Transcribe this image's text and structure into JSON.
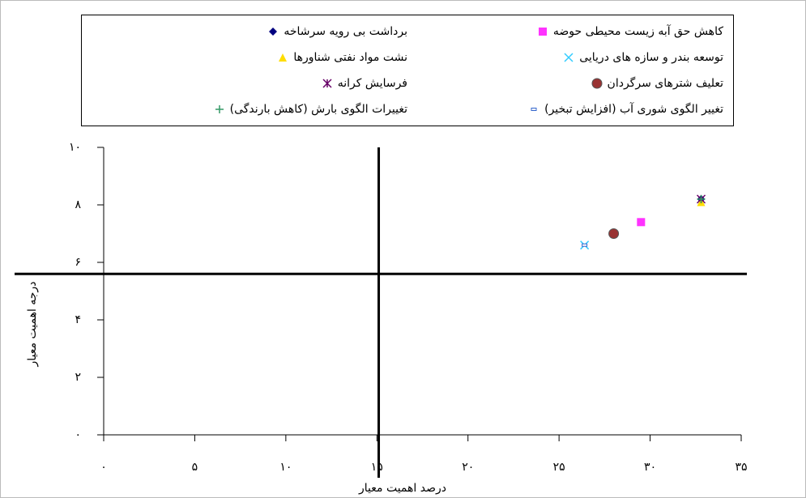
{
  "chart_data": {
    "type": "scatter",
    "xlabel": "درصد اهمیت معیار",
    "ylabel": "درجه اهمیت معیار",
    "xlim": [
      0,
      35
    ],
    "ylim": [
      0,
      10
    ],
    "xticks": [
      {
        "value": 0,
        "label": "۰"
      },
      {
        "value": 5,
        "label": "۵"
      },
      {
        "value": 10,
        "label": "۱۰"
      },
      {
        "value": 15,
        "label": "۱۵"
      },
      {
        "value": 20,
        "label": "۲۰"
      },
      {
        "value": 25,
        "label": "۲۵"
      },
      {
        "value": 30,
        "label": "۳۰"
      },
      {
        "value": 35,
        "label": "۳۵"
      }
    ],
    "yticks": [
      {
        "value": 0,
        "label": "۰"
      },
      {
        "value": 2,
        "label": "۲"
      },
      {
        "value": 4,
        "label": "۴"
      },
      {
        "value": 6,
        "label": "۶"
      },
      {
        "value": 8,
        "label": "۸"
      },
      {
        "value": 10,
        "label": "۱۰"
      }
    ],
    "reference_x": 15.1,
    "reference_y": 5.6,
    "series": [
      {
        "name": "کاهش حق آبه زیست محیطی حوضه",
        "color": "#ff33ff",
        "marker": "square",
        "x": [
          29.5
        ],
        "values": [
          7.4
        ]
      },
      {
        "name": "برداشت بی رویه سرشاخه",
        "color": "#000080",
        "marker": "diamond",
        "x": [
          32.8
        ],
        "values": [
          8.2
        ]
      },
      {
        "name": "توسعه  بندر و سازه های دریایی",
        "color": "#33ccff",
        "marker": "cross",
        "x": [
          26.4
        ],
        "values": [
          6.6
        ]
      },
      {
        "name": "نشت مواد نفتی شناورها",
        "color": "#ffdd00",
        "marker": "triangle",
        "x": [
          32.8
        ],
        "values": [
          8.1
        ]
      },
      {
        "name": "تعلیف شترهای سرگردان",
        "color": "#993333",
        "marker": "circle",
        "x": [
          28.0
        ],
        "values": [
          7.0
        ]
      },
      {
        "name": "فرسایش کرانه",
        "color": "#660066",
        "marker": "star",
        "x": [
          32.8
        ],
        "values": [
          8.2
        ]
      },
      {
        "name": "تغییر الگوی شوری آب (افزایش تبخیر)",
        "color": "#3366cc",
        "marker": "dash",
        "x": [
          26.4
        ],
        "values": [
          6.6
        ]
      },
      {
        "name": "تغییرات الگوی بارش (کاهش بارندگی)",
        "color": "#339966",
        "marker": "plus",
        "x": [
          32.8
        ],
        "values": [
          8.2
        ]
      }
    ]
  }
}
